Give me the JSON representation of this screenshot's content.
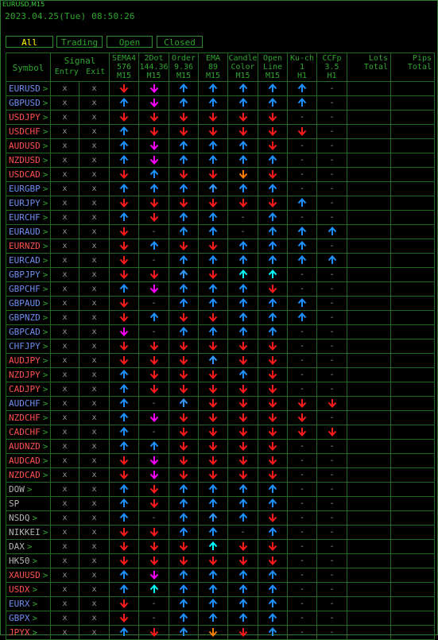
{
  "window_title": "EURUSD,M15",
  "datetime": "2023.04.25(Tue) 08:50:26",
  "tabs": [
    {
      "label": "All",
      "active": true
    },
    {
      "label": "Trading",
      "active": false
    },
    {
      "label": "Open",
      "active": false
    },
    {
      "label": "Closed",
      "active": false
    }
  ],
  "headers": {
    "symbol": "Symbol",
    "signal": "Signal",
    "entry": "Entry",
    "exit": "Exit",
    "cols": [
      [
        "SEMA4",
        "576",
        "M15"
      ],
      [
        "2Dot",
        "144.36",
        "M15"
      ],
      [
        "Order",
        "9.36",
        "M15"
      ],
      [
        "EMA",
        "89",
        "M15"
      ],
      [
        "Candle",
        "Color",
        "M15"
      ],
      [
        "Open",
        "Line",
        "M15"
      ],
      [
        "Ku-ch",
        "1",
        "H1"
      ],
      [
        "CCFp",
        "3.5",
        "H1"
      ]
    ],
    "lots": [
      "Lots",
      "Total"
    ],
    "pips": [
      "Pips",
      "Total"
    ]
  },
  "colors": {
    "u": "#1e90ff",
    "d": "#ff1a1a",
    "m": "#ff00ff",
    "c": "#00ffff",
    "o": "#ff7f00",
    "bright_blue": "#3399ff",
    "dash": "#999999",
    "green": "#2fa52f"
  },
  "rows": [
    {
      "sym": "EURUSD",
      "symColor": "#6e8ef0",
      "chev": ">",
      "e": "x",
      "x": "x",
      "a": [
        "d",
        "m",
        "u",
        "u",
        "u",
        "u",
        "u",
        "-"
      ]
    },
    {
      "sym": "GBPUSD",
      "symColor": "#6e8ef0",
      "chev": ">",
      "e": "x",
      "x": "x",
      "a": [
        "u",
        "m",
        "u",
        "u",
        "u",
        "u",
        "u",
        "-"
      ]
    },
    {
      "sym": "USDJPY",
      "symColor": "#ff5050",
      "chev": ">",
      "e": "x",
      "x": "x",
      "a": [
        "d",
        "d",
        "d",
        "d",
        "d",
        "d",
        "-",
        "-"
      ]
    },
    {
      "sym": "USDCHF",
      "symColor": "#ff5050",
      "chev": ">",
      "e": "x",
      "x": "x",
      "a": [
        "u",
        "d",
        "d",
        "d",
        "d",
        "d",
        "d",
        "-"
      ]
    },
    {
      "sym": "AUDUSD",
      "symColor": "#ff5050",
      "chev": ">",
      "e": "x",
      "x": "x",
      "a": [
        "u",
        "m",
        "u",
        "u",
        "u",
        "d",
        "-",
        "-"
      ]
    },
    {
      "sym": "NZDUSD",
      "symColor": "#ff5050",
      "chev": ">",
      "e": "x",
      "x": "x",
      "a": [
        "u",
        "m",
        "u",
        "u",
        "u",
        "u",
        "-",
        "-"
      ]
    },
    {
      "sym": "USDCAD",
      "symColor": "#ff5050",
      "chev": ">",
      "e": "x",
      "x": "x",
      "a": [
        "d",
        "u",
        "d",
        "d",
        "o",
        "d",
        "-",
        "-"
      ]
    },
    {
      "sym": "EURGBP",
      "symColor": "#6e8ef0",
      "chev": ">",
      "e": "x",
      "x": "x",
      "a": [
        "u",
        "u",
        "u",
        "B",
        "u",
        "u",
        "-",
        "-"
      ]
    },
    {
      "sym": "EURJPY",
      "symColor": "#6e8ef0",
      "chev": ">",
      "e": "x",
      "x": "x",
      "a": [
        "d",
        "d",
        "d",
        "d",
        "d",
        "d",
        "u",
        "-"
      ]
    },
    {
      "sym": "EURCHF",
      "symColor": "#6e8ef0",
      "chev": ">",
      "e": "x",
      "x": "x",
      "a": [
        "u",
        "d",
        "u",
        "u",
        "-",
        "u",
        "-",
        "-"
      ]
    },
    {
      "sym": "EURAUD",
      "symColor": "#6e8ef0",
      "chev": ">",
      "e": "x",
      "x": "x",
      "a": [
        "d",
        "-",
        "u",
        "u",
        "-",
        "u",
        "u",
        "u"
      ]
    },
    {
      "sym": "EURNZD",
      "symColor": "#ff5050",
      "chev": ">",
      "e": "x",
      "x": "x",
      "a": [
        "d",
        "u",
        "d",
        "d",
        "u",
        "u",
        "u",
        "-"
      ]
    },
    {
      "sym": "EURCAD",
      "symColor": "#6e8ef0",
      "chev": ">",
      "e": "x",
      "x": "x",
      "a": [
        "d",
        "-",
        "u",
        "u",
        "u",
        "u",
        "u",
        "u"
      ]
    },
    {
      "sym": "GBPJPY",
      "symColor": "#6e8ef0",
      "chev": ">",
      "e": "x",
      "x": "x",
      "a": [
        "d",
        "d",
        "B",
        "d",
        "c",
        "c",
        "-",
        "-"
      ]
    },
    {
      "sym": "GBPCHF",
      "symColor": "#6e8ef0",
      "chev": ">",
      "e": "x",
      "x": "x",
      "a": [
        "u",
        "m",
        "u",
        "u",
        "u",
        "d",
        "-",
        "-"
      ]
    },
    {
      "sym": "GBPAUD",
      "symColor": "#6e8ef0",
      "chev": ">",
      "e": "x",
      "x": "x",
      "a": [
        "d",
        "-",
        "u",
        "u",
        "u",
        "u",
        "u",
        "-"
      ]
    },
    {
      "sym": "GBPNZD",
      "symColor": "#6e8ef0",
      "chev": ">",
      "e": "x",
      "x": "x",
      "a": [
        "d",
        "u",
        "d",
        "d",
        "u",
        "u",
        "u",
        "-"
      ]
    },
    {
      "sym": "GBPCAD",
      "symColor": "#6e8ef0",
      "chev": ">",
      "e": "x",
      "x": "x",
      "a": [
        "m",
        "-",
        "u",
        "u",
        "u",
        "u",
        "-",
        "-"
      ]
    },
    {
      "sym": "CHFJPY",
      "symColor": "#6e8ef0",
      "chev": ">",
      "e": "x",
      "x": "x",
      "a": [
        "d",
        "d",
        "d",
        "d",
        "d",
        "d",
        "-",
        "-"
      ]
    },
    {
      "sym": "AUDJPY",
      "symColor": "#ff5050",
      "chev": ">",
      "e": "x",
      "x": "x",
      "a": [
        "d",
        "d",
        "d",
        "B",
        "d",
        "d",
        "-",
        "-"
      ]
    },
    {
      "sym": "NZDJPY",
      "symColor": "#ff5050",
      "chev": ">",
      "e": "x",
      "x": "x",
      "a": [
        "u",
        "d",
        "d",
        "d",
        "u",
        "d",
        "-",
        "-"
      ]
    },
    {
      "sym": "CADJPY",
      "symColor": "#ff5050",
      "chev": ">",
      "e": "x",
      "x": "x",
      "a": [
        "u",
        "d",
        "d",
        "d",
        "d",
        "d",
        "-",
        "-"
      ]
    },
    {
      "sym": "AUDCHF",
      "symColor": "#6e8ef0",
      "chev": ">",
      "e": "x",
      "x": "x",
      "a": [
        "u",
        "-",
        "B",
        "d",
        "d",
        "d",
        "d",
        "d"
      ]
    },
    {
      "sym": "NZDCHF",
      "symColor": "#ff5050",
      "chev": ">",
      "e": "x",
      "x": "x",
      "a": [
        "u",
        "m",
        "d",
        "d",
        "d",
        "d",
        "d",
        "-"
      ]
    },
    {
      "sym": "CADCHF",
      "symColor": "#ff5050",
      "chev": ">",
      "e": "x",
      "x": "x",
      "a": [
        "u",
        "-",
        "d",
        "d",
        "d",
        "d",
        "d",
        "d"
      ]
    },
    {
      "sym": "AUDNZD",
      "symColor": "#ff5050",
      "chev": ">",
      "e": "x",
      "x": "x",
      "a": [
        "u",
        "u",
        "d",
        "d",
        "d",
        "d",
        "-",
        "-"
      ]
    },
    {
      "sym": "AUDCAD",
      "symColor": "#ff5050",
      "chev": ">",
      "e": "x",
      "x": "x",
      "a": [
        "d",
        "m",
        "d",
        "d",
        "d",
        "d",
        "-",
        "-"
      ]
    },
    {
      "sym": "NZDCAD",
      "symColor": "#ff5050",
      "chev": ">",
      "e": "x",
      "x": "x",
      "a": [
        "d",
        "m",
        "d",
        "d",
        "d",
        "d",
        "-",
        "-"
      ]
    },
    {
      "sym": "DOW",
      "symColor": "#b4b4b4",
      "chev": ">",
      "e": "x",
      "x": "x",
      "a": [
        "u",
        "d",
        "u",
        "u",
        "u",
        "u",
        "-",
        "-"
      ]
    },
    {
      "sym": "SP",
      "symColor": "#b4b4b4",
      "chev": "",
      "e": "x",
      "x": "x",
      "a": [
        "u",
        "d",
        "u",
        "u",
        "u",
        "u",
        "-",
        "-"
      ]
    },
    {
      "sym": "NSDQ",
      "symColor": "#b4b4b4",
      "chev": ">",
      "e": "x",
      "x": "x",
      "a": [
        "u",
        "-",
        "u",
        "B",
        "u",
        "d",
        "-",
        "-"
      ]
    },
    {
      "sym": "NIKKEI",
      "symColor": "#b4b4b4",
      "chev": ">",
      "e": "x",
      "x": "x",
      "a": [
        "d",
        "d",
        "u",
        "u",
        "-",
        "u",
        "-",
        "-"
      ]
    },
    {
      "sym": "DAX",
      "symColor": "#b4b4b4",
      "chev": ">",
      "e": "x",
      "x": "x",
      "a": [
        "d",
        "d",
        "d",
        "c",
        "d",
        "d",
        "-",
        "-"
      ]
    },
    {
      "sym": "HK50",
      "symColor": "#b4b4b4",
      "chev": ">",
      "e": "x",
      "x": "x",
      "a": [
        "d",
        "d",
        "d",
        "d",
        "d",
        "d",
        "-",
        "-"
      ]
    },
    {
      "sym": "XAUUSD",
      "symColor": "#ff5050",
      "chev": ">",
      "e": "x",
      "x": "x",
      "a": [
        "u",
        "m",
        "u",
        "u",
        "u",
        "u",
        "-",
        "-"
      ]
    },
    {
      "sym": "USDX",
      "symColor": "#ff5050",
      "chev": ">",
      "e": "x",
      "x": "x",
      "a": [
        "u",
        "c",
        "u",
        "u",
        "u",
        "u",
        "-",
        "-"
      ]
    },
    {
      "sym": "EURX",
      "symColor": "#6e8ef0",
      "chev": ">",
      "e": "x",
      "x": "x",
      "a": [
        "d",
        "-",
        "u",
        "u",
        "u",
        "u",
        "-",
        "-"
      ]
    },
    {
      "sym": "GBPX",
      "symColor": "#6e8ef0",
      "chev": ">",
      "e": "x",
      "x": "x",
      "a": [
        "d",
        "-",
        "u",
        "u",
        "u",
        "u",
        "-",
        "-"
      ]
    },
    {
      "sym": "JPYX",
      "symColor": "#ff5050",
      "chev": ">",
      "e": "x",
      "x": "x",
      "a": [
        "u",
        "d",
        "u",
        "o",
        "d",
        "u",
        "-",
        "-"
      ]
    }
  ]
}
